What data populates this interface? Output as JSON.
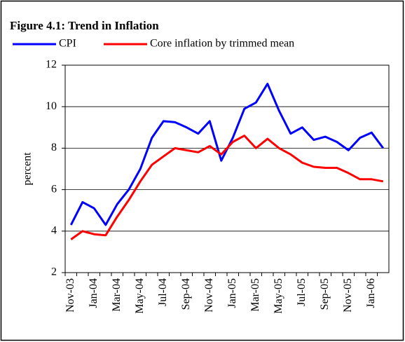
{
  "chart_data": {
    "type": "line",
    "title": "Figure 4.1: Trend in Inflation",
    "ylabel": "percent",
    "categories": [
      "Nov-03",
      null,
      "Jan-04",
      null,
      "Mar-04",
      null,
      "May-04",
      null,
      "Jul-04",
      null,
      "Sep-04",
      null,
      "Nov-04",
      null,
      "Jan-05",
      null,
      "Mar-05",
      null,
      "May-05",
      null,
      "Jul-05",
      null,
      "Sep-05",
      null,
      "Nov-05",
      null,
      "Jan-06",
      null
    ],
    "series": [
      {
        "name": "CPI",
        "color": "#0000ff",
        "values": [
          4.3,
          5.4,
          5.1,
          4.3,
          5.3,
          6.0,
          7.0,
          8.5,
          9.3,
          9.25,
          9.0,
          8.7,
          9.3,
          7.4,
          8.5,
          9.9,
          10.2,
          11.1,
          9.8,
          8.7,
          9.0,
          8.4,
          8.55,
          8.3,
          7.9,
          8.5,
          8.75,
          8.0
        ]
      },
      {
        "name": "Core inflation by trimmed mean",
        "color": "#ff0000",
        "values": [
          3.6,
          4.0,
          3.85,
          3.8,
          4.7,
          5.5,
          6.4,
          7.2,
          7.6,
          8.0,
          7.9,
          7.8,
          8.1,
          7.7,
          8.3,
          8.6,
          8.0,
          8.45,
          8.0,
          7.7,
          7.3,
          7.1,
          7.05,
          7.05,
          6.8,
          6.5,
          6.5,
          6.4
        ]
      }
    ],
    "ylim": [
      2,
      12
    ],
    "yticks": [
      2,
      4,
      6,
      8,
      10,
      12
    ],
    "grid": true
  }
}
